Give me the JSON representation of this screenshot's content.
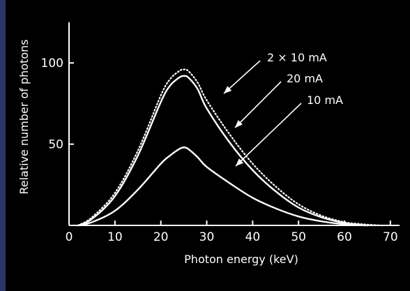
{
  "chart_data": {
    "type": "line",
    "xlabel": "Photon energy (keV)",
    "ylabel": "Relative number of photons",
    "xlim": [
      0,
      72
    ],
    "ylim": [
      0,
      125
    ],
    "x_ticks": [
      0,
      10,
      20,
      30,
      40,
      50,
      60,
      70
    ],
    "x_tick_labels": [
      "0",
      "10",
      "20",
      "30",
      "40",
      "50",
      "60",
      "70"
    ],
    "y_ticks": [
      50,
      100
    ],
    "y_tick_labels": [
      "50",
      "100"
    ],
    "grid": false,
    "colors": {
      "background": "#000000",
      "frame": "#2c3466",
      "ink": "#ffffff"
    },
    "series": [
      {
        "name": "2 × 10 mA",
        "style": "dotted",
        "x": [
          2,
          5,
          10,
          15,
          20,
          22,
          24,
          25,
          26,
          28,
          30,
          35,
          40,
          45,
          50,
          55,
          60,
          63,
          65,
          68
        ],
        "y": [
          0,
          5,
          20,
          46,
          80,
          90,
          95,
          96,
          95,
          88,
          77,
          56,
          38,
          24,
          13,
          6,
          2,
          1,
          0.5,
          0
        ]
      },
      {
        "name": "20 mA",
        "style": "solid",
        "x": [
          2,
          5,
          10,
          15,
          20,
          22,
          24,
          25,
          26,
          28,
          30,
          35,
          40,
          45,
          50,
          55,
          60,
          63,
          65
        ],
        "y": [
          0,
          4,
          18,
          43,
          76,
          86,
          91,
          92,
          91,
          84,
          72,
          51,
          34,
          21,
          11,
          5,
          1.5,
          0.5,
          0
        ]
      },
      {
        "name": "10 mA",
        "style": "solid",
        "x": [
          2,
          5,
          10,
          15,
          20,
          22,
          24,
          25,
          26,
          28,
          30,
          35,
          40,
          45,
          50,
          55,
          60,
          63,
          65
        ],
        "y": [
          0,
          2,
          9,
          22,
          38,
          43,
          47,
          48,
          47,
          42,
          36,
          26,
          17,
          10.5,
          5.5,
          2.5,
          0.7,
          0.2,
          0
        ]
      }
    ]
  }
}
